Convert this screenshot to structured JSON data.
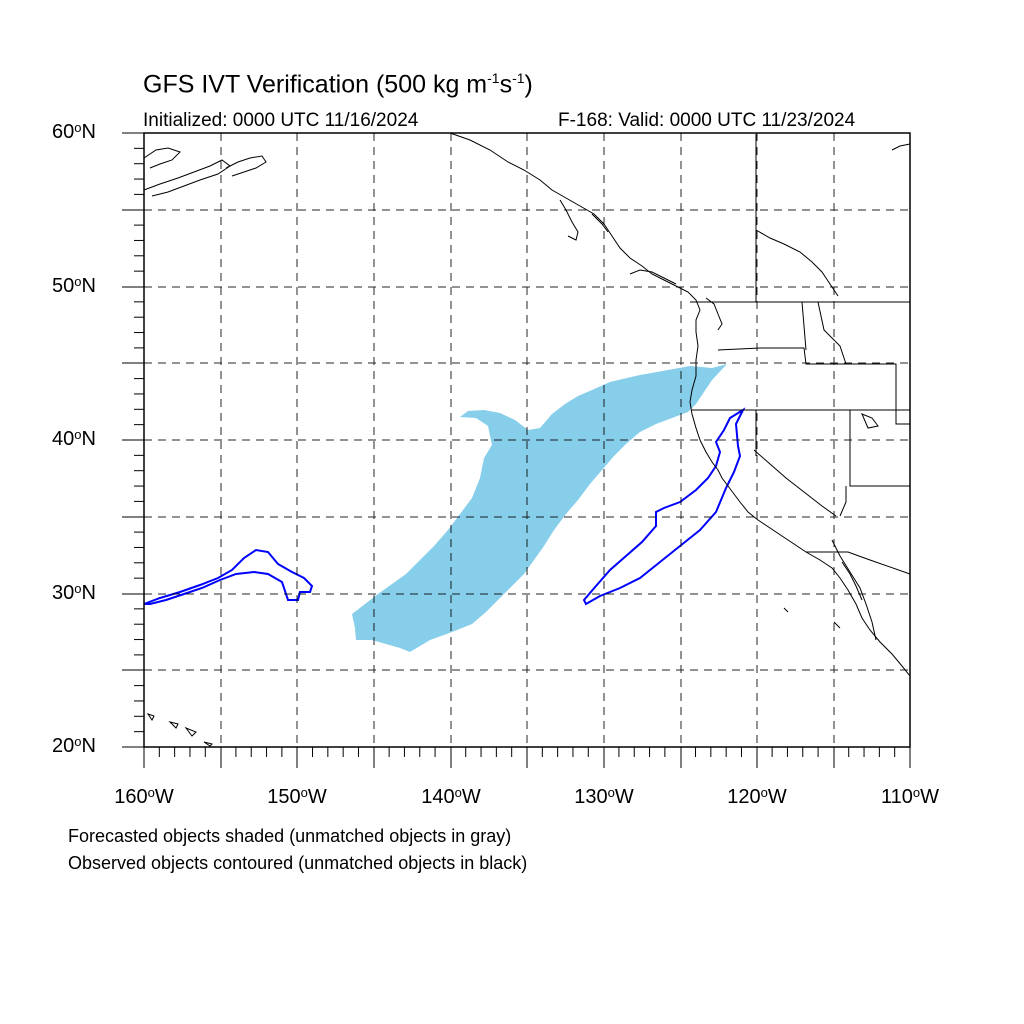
{
  "title": {
    "main": "GFS IVT Verification (500 kg m",
    "sup1": "-1",
    "mid": "s",
    "sup2": "-1",
    "end": ")"
  },
  "subtitle_left": "Initialized: 0000 UTC 11/16/2024",
  "subtitle_right": "F-168: Valid: 0000 UTC 11/23/2024",
  "lat_labels": [
    {
      "num": "60",
      "suffix": "N"
    },
    {
      "num": "50",
      "suffix": "N"
    },
    {
      "num": "40",
      "suffix": "N"
    },
    {
      "num": "30",
      "suffix": "N"
    },
    {
      "num": "20",
      "suffix": "N"
    }
  ],
  "lon_labels": [
    {
      "num": "160",
      "suffix": "W"
    },
    {
      "num": "150",
      "suffix": "W"
    },
    {
      "num": "140",
      "suffix": "W"
    },
    {
      "num": "130",
      "suffix": "W"
    },
    {
      "num": "120",
      "suffix": "W"
    },
    {
      "num": "110",
      "suffix": "W"
    }
  ],
  "degree_symbol": "o",
  "notes": [
    "Forecasted objects shaded (unmatched objects in gray)",
    "Observed objects contoured (unmatched objects in black)"
  ],
  "colors": {
    "forecast_fill": "#87ceeb",
    "observed_contour": "#0000ff",
    "grid": "#000000",
    "coast": "#000000"
  },
  "map_extent": {
    "lon_min": -160,
    "lon_max": -110,
    "lat_min": 20,
    "lat_max": 60
  }
}
